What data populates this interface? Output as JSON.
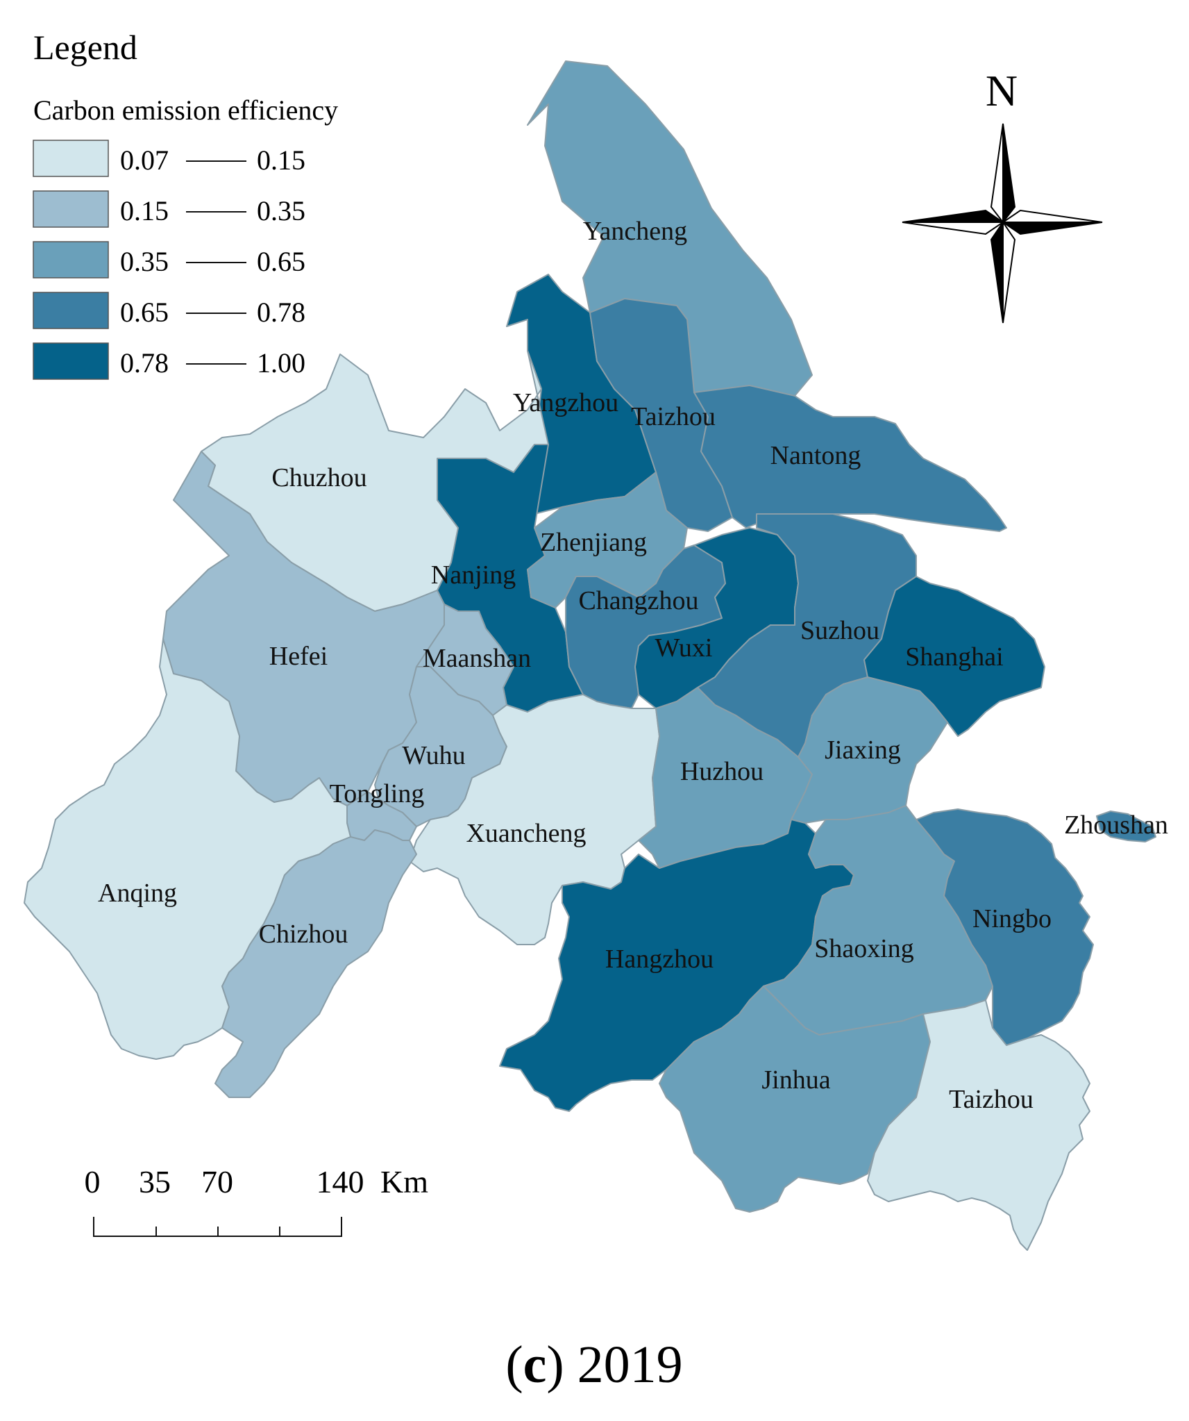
{
  "legend": {
    "title": "Legend",
    "subtitle": "Carbon emission efficiency",
    "classes": [
      {
        "min": "0.07",
        "max": "0.15",
        "color": "#d2e6ec"
      },
      {
        "min": "0.15",
        "max": "0.35",
        "color": "#9dbdd0"
      },
      {
        "min": "0.35",
        "max": "0.65",
        "color": "#6aa0ba"
      },
      {
        "min": "0.65",
        "max": "0.78",
        "color": "#3b7ea3"
      },
      {
        "min": "0.78",
        "max": "1.00",
        "color": "#05628a"
      }
    ]
  },
  "north_arrow": {
    "label": "N"
  },
  "scale_bar": {
    "ticks": [
      "0",
      "35",
      "70",
      "140"
    ],
    "unit": "Km"
  },
  "cities": [
    {
      "name": "Yancheng",
      "class": 2
    },
    {
      "name": "Yangzhou",
      "class": 4
    },
    {
      "name": "Taizhou",
      "class": 3
    },
    {
      "name": "Nantong",
      "class": 3
    },
    {
      "name": "Chuzhou",
      "class": 0
    },
    {
      "name": "Nanjing",
      "class": 4
    },
    {
      "name": "Zhenjiang",
      "class": 2
    },
    {
      "name": "Changzhou",
      "class": 3
    },
    {
      "name": "Wuxi",
      "class": 4
    },
    {
      "name": "Suzhou",
      "class": 3
    },
    {
      "name": "Shanghai",
      "class": 4
    },
    {
      "name": "Hefei",
      "class": 1
    },
    {
      "name": "Maanshan",
      "class": 1
    },
    {
      "name": "Wuhu",
      "class": 1
    },
    {
      "name": "Tongling",
      "class": 1
    },
    {
      "name": "Xuancheng",
      "class": 0
    },
    {
      "name": "Huzhou",
      "class": 2
    },
    {
      "name": "Jiaxing",
      "class": 2
    },
    {
      "name": "Zhoushan",
      "class": 3
    },
    {
      "name": "Anqing",
      "class": 0
    },
    {
      "name": "Chizhou",
      "class": 1
    },
    {
      "name": "Hangzhou",
      "class": 4
    },
    {
      "name": "Shaoxing",
      "class": 2
    },
    {
      "name": "Ningbo",
      "class": 3
    },
    {
      "name": "Jinhua",
      "class": 2
    },
    {
      "name": "Taizhou",
      "class": 0
    }
  ],
  "caption": {
    "panel": "c",
    "year": "2019"
  }
}
